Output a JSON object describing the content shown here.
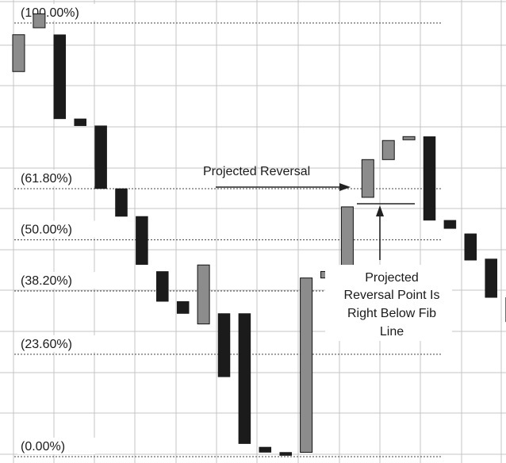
{
  "chart_data": {
    "type": "candlestick",
    "title": "",
    "xlabel": "",
    "ylabel": "",
    "ylim": [
      -1,
      104
    ],
    "grid": true,
    "legend": "none",
    "colors": {
      "bearish": "#1b1b1b",
      "bullish": "#8c8c8c",
      "grid": "#c4c4c4",
      "fib_line": "#444444",
      "annotation_line": "#222222"
    },
    "fib_levels": [
      {
        "label": "(100.00%)",
        "value": 100.0
      },
      {
        "label": "(61.80%)",
        "value": 61.8
      },
      {
        "label": "(50.00%)",
        "value": 50.0
      },
      {
        "label": "(38.20%)",
        "value": 38.2
      },
      {
        "label": "(23.60%)",
        "value": 23.6
      },
      {
        "label": "(0.00%)",
        "value": 0.0
      }
    ],
    "bars": [
      {
        "index": 0,
        "open": 88.8,
        "close": 97.3,
        "direction": "up"
      },
      {
        "index": 1,
        "open": 98.9,
        "close": 102.1,
        "direction": "up"
      },
      {
        "index": 2,
        "open": 97.3,
        "close": 77.9,
        "direction": "down"
      },
      {
        "index": 3,
        "open": 77.9,
        "close": 76.3,
        "direction": "down"
      },
      {
        "index": 4,
        "open": 76.3,
        "close": 61.8,
        "direction": "down"
      },
      {
        "index": 5,
        "open": 61.8,
        "close": 55.4,
        "direction": "down"
      },
      {
        "index": 6,
        "open": 55.4,
        "close": 44.3,
        "direction": "down"
      },
      {
        "index": 7,
        "open": 42.7,
        "close": 35.8,
        "direction": "down"
      },
      {
        "index": 8,
        "open": 35.8,
        "close": 33.0,
        "direction": "down"
      },
      {
        "index": 9,
        "open": 30.6,
        "close": 44.2,
        "direction": "up"
      },
      {
        "index": 10,
        "open": 33.0,
        "close": 18.4,
        "direction": "down"
      },
      {
        "index": 11,
        "open": 33.0,
        "close": 3.0,
        "direction": "down"
      },
      {
        "index": 12,
        "open": 2.2,
        "close": 1.0,
        "direction": "down"
      },
      {
        "index": 13,
        "open": 1.0,
        "close": 0.3,
        "direction": "down"
      },
      {
        "index": 14,
        "open": 1.0,
        "close": 41.2,
        "direction": "up"
      },
      {
        "index": 15,
        "open": 41.2,
        "close": 42.7,
        "direction": "up"
      },
      {
        "index": 16,
        "open": 42.5,
        "close": 57.6,
        "direction": "up"
      },
      {
        "index": 17,
        "open": 59.8,
        "close": 68.5,
        "direction": "up"
      },
      {
        "index": 18,
        "open": 68.5,
        "close": 72.9,
        "direction": "up"
      },
      {
        "index": 19,
        "open": 73.2,
        "close": 73.8,
        "direction": "up"
      },
      {
        "index": 20,
        "open": 73.8,
        "close": 54.5,
        "direction": "down"
      },
      {
        "index": 21,
        "open": 54.5,
        "close": 52.6,
        "direction": "down"
      },
      {
        "index": 22,
        "open": 51.4,
        "close": 45.3,
        "direction": "down"
      },
      {
        "index": 23,
        "open": 45.6,
        "close": 36.7,
        "direction": "down"
      },
      {
        "index": 24,
        "open": 36.7,
        "close": 31.1,
        "direction": "down"
      }
    ],
    "projected_reversal_level": 59.3,
    "annotations": [
      {
        "text": "Projected Reversal",
        "points_to_bar": 17
      },
      {
        "text_lines": [
          "Projected",
          "Reversal Point Is",
          "Right Below Fib",
          "Line"
        ],
        "points_to_level": 59.3
      }
    ]
  }
}
